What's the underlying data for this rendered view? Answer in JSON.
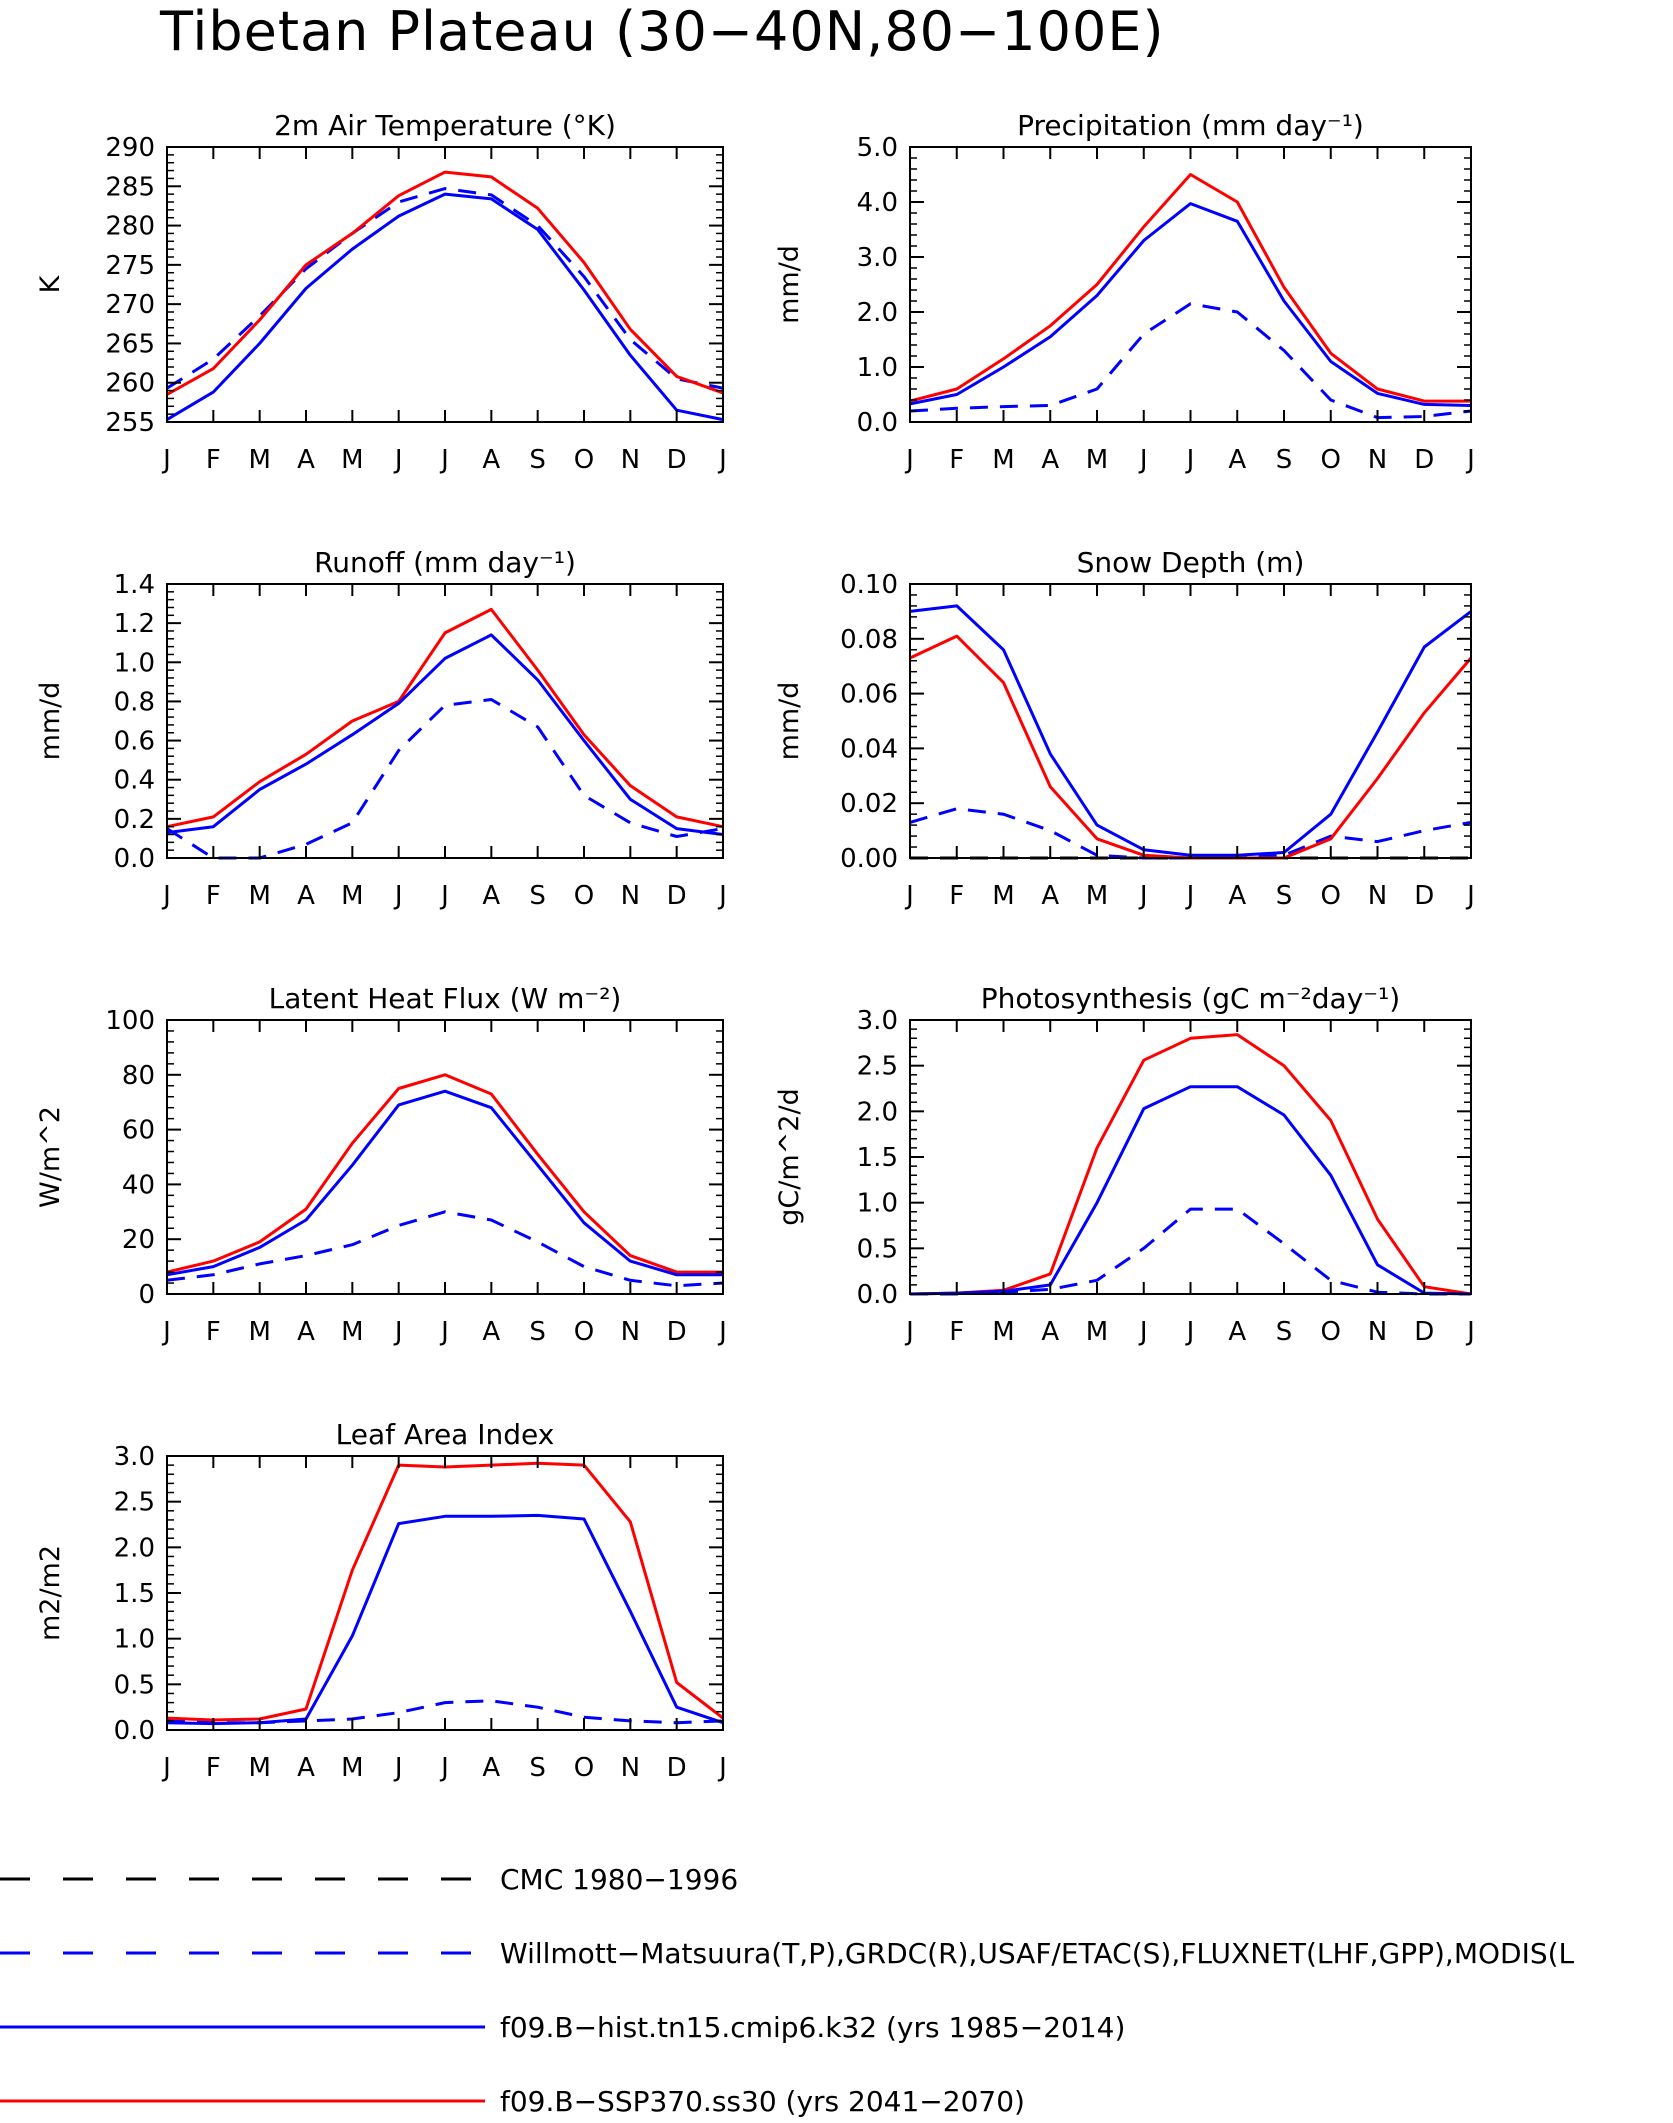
{
  "title": "Tibetan Plateau (30−40N,80−100E)",
  "colors": {
    "red": "#ff0000",
    "blue": "#0000ff",
    "black": "#000000"
  },
  "months": [
    "J",
    "F",
    "M",
    "A",
    "M",
    "J",
    "J",
    "A",
    "S",
    "O",
    "N",
    "D",
    "J"
  ],
  "legend": [
    {
      "label": "CMC 1980−1996",
      "color": "#000000",
      "dash": true
    },
    {
      "label": "Willmott−Matsuura(T,P),GRDC(R),USAF/ETAC(S),FLUXNET(LHF,GPP),MODIS(L",
      "color": "#0000ff",
      "dash": true
    },
    {
      "label": "f09.B−hist.tn15.cmip6.k32 (yrs 1985−2014)",
      "color": "#0000ff",
      "dash": false
    },
    {
      "label": "f09.B−SSP370.ss30 (yrs 2041−2070)",
      "color": "#ff0000",
      "dash": false
    }
  ],
  "chart_data": [
    {
      "type": "line",
      "title": "2m Air Temperature (°K)",
      "ylabel": "K",
      "ylim": [
        255,
        290
      ],
      "yticks": [
        "255",
        "260",
        "265",
        "270",
        "275",
        "280",
        "285",
        "290"
      ],
      "categories": [
        "J",
        "F",
        "M",
        "A",
        "M",
        "J",
        "J",
        "A",
        "S",
        "O",
        "N",
        "D",
        "J"
      ],
      "series": [
        {
          "color": "#0000ff",
          "dash": true,
          "values": [
            259.3,
            263.0,
            268.5,
            274.5,
            279.0,
            283.0,
            284.7,
            283.9,
            280.0,
            273.5,
            265.5,
            260.5,
            259.3
          ]
        },
        {
          "color": "#ff0000",
          "dash": false,
          "values": [
            258.5,
            261.8,
            268.0,
            275.0,
            279.0,
            283.8,
            286.8,
            286.2,
            282.2,
            275.3,
            266.8,
            260.8,
            258.7
          ]
        },
        {
          "color": "#0000ff",
          "dash": false,
          "values": [
            255.3,
            258.8,
            265.0,
            272.0,
            277.0,
            281.2,
            284.0,
            283.4,
            279.5,
            271.8,
            263.5,
            256.5,
            255.3
          ]
        }
      ]
    },
    {
      "type": "line",
      "title": "Precipitation (mm day⁻¹)",
      "ylabel": "mm/d",
      "ylim": [
        0,
        5
      ],
      "yticks": [
        "0.0",
        "1.0",
        "2.0",
        "3.0",
        "4.0",
        "5.0"
      ],
      "categories": [
        "J",
        "F",
        "M",
        "A",
        "M",
        "J",
        "J",
        "A",
        "S",
        "O",
        "N",
        "D",
        "J"
      ],
      "series": [
        {
          "color": "#0000ff",
          "dash": true,
          "values": [
            0.2,
            0.25,
            0.28,
            0.3,
            0.6,
            1.6,
            2.15,
            2.0,
            1.3,
            0.4,
            0.08,
            0.1,
            0.2
          ]
        },
        {
          "color": "#ff0000",
          "dash": false,
          "values": [
            0.38,
            0.6,
            1.15,
            1.75,
            2.5,
            3.55,
            4.5,
            4.0,
            2.45,
            1.25,
            0.6,
            0.38,
            0.38
          ]
        },
        {
          "color": "#0000ff",
          "dash": false,
          "values": [
            0.33,
            0.5,
            1.0,
            1.55,
            2.3,
            3.3,
            3.97,
            3.65,
            2.2,
            1.1,
            0.52,
            0.32,
            0.3
          ]
        }
      ]
    },
    {
      "type": "line",
      "title": "Runoff (mm day⁻¹)",
      "ylabel": "mm/d",
      "ylim": [
        0,
        1.4
      ],
      "yticks": [
        "0.0",
        "0.2",
        "0.4",
        "0.6",
        "0.8",
        "1.0",
        "1.2",
        "1.4"
      ],
      "categories": [
        "J",
        "F",
        "M",
        "A",
        "M",
        "J",
        "J",
        "A",
        "S",
        "O",
        "N",
        "D",
        "J"
      ],
      "series": [
        {
          "color": "#0000ff",
          "dash": true,
          "values": [
            0.15,
            0.0,
            0.0,
            0.07,
            0.18,
            0.55,
            0.78,
            0.81,
            0.67,
            0.32,
            0.18,
            0.11,
            0.15
          ]
        },
        {
          "color": "#ff0000",
          "dash": false,
          "values": [
            0.16,
            0.21,
            0.39,
            0.53,
            0.7,
            0.8,
            1.15,
            1.27,
            0.96,
            0.63,
            0.37,
            0.21,
            0.16
          ]
        },
        {
          "color": "#0000ff",
          "dash": false,
          "values": [
            0.13,
            0.16,
            0.35,
            0.48,
            0.63,
            0.79,
            1.02,
            1.14,
            0.91,
            0.6,
            0.3,
            0.15,
            0.12
          ]
        }
      ]
    },
    {
      "type": "line",
      "title": "Snow Depth (m)",
      "ylabel": "mm/d",
      "ylim": [
        0,
        0.1
      ],
      "yticks": [
        "0.00",
        "0.02",
        "0.04",
        "0.06",
        "0.08",
        "0.10"
      ],
      "categories": [
        "J",
        "F",
        "M",
        "A",
        "M",
        "J",
        "J",
        "A",
        "S",
        "O",
        "N",
        "D",
        "J"
      ],
      "series": [
        {
          "color": "#000000",
          "dash": true,
          "values": [
            0,
            0,
            0,
            0,
            0,
            0,
            0,
            0,
            0,
            0,
            0,
            0,
            0
          ]
        },
        {
          "color": "#0000ff",
          "dash": true,
          "values": [
            0.013,
            0.018,
            0.016,
            0.01,
            0.001,
            0.0,
            0.0,
            0.0,
            0.001,
            0.008,
            0.006,
            0.01,
            0.013
          ]
        },
        {
          "color": "#ff0000",
          "dash": false,
          "values": [
            0.073,
            0.081,
            0.064,
            0.026,
            0.007,
            0.001,
            0.0,
            0.0,
            0.0,
            0.007,
            0.029,
            0.053,
            0.073
          ]
        },
        {
          "color": "#0000ff",
          "dash": false,
          "values": [
            0.09,
            0.092,
            0.076,
            0.038,
            0.012,
            0.003,
            0.001,
            0.001,
            0.002,
            0.016,
            0.046,
            0.077,
            0.09
          ]
        }
      ]
    },
    {
      "type": "line",
      "title": "Latent Heat Flux (W m⁻²)",
      "ylabel": "W/m^2",
      "ylim": [
        0,
        100
      ],
      "yticks": [
        "0",
        "20",
        "40",
        "60",
        "80",
        "100"
      ],
      "categories": [
        "J",
        "F",
        "M",
        "A",
        "M",
        "J",
        "J",
        "A",
        "S",
        "O",
        "N",
        "D",
        "J"
      ],
      "series": [
        {
          "color": "#0000ff",
          "dash": true,
          "values": [
            5,
            7,
            11,
            14,
            18,
            25,
            30,
            27,
            19,
            10,
            5,
            3,
            4
          ]
        },
        {
          "color": "#ff0000",
          "dash": false,
          "values": [
            8,
            12,
            19,
            31,
            55,
            75,
            80,
            73,
            51,
            30,
            14,
            8,
            8
          ]
        },
        {
          "color": "#0000ff",
          "dash": false,
          "values": [
            7,
            10,
            17,
            27,
            47,
            69,
            74,
            68,
            47,
            26,
            12,
            7,
            7
          ]
        }
      ]
    },
    {
      "type": "line",
      "title": "Photosynthesis (gC m⁻²day⁻¹)",
      "ylabel": "gC/m^2/d",
      "ylim": [
        0,
        3
      ],
      "yticks": [
        "0.0",
        "0.5",
        "1.0",
        "1.5",
        "2.0",
        "2.5",
        "3.0"
      ],
      "categories": [
        "J",
        "F",
        "M",
        "A",
        "M",
        "J",
        "J",
        "A",
        "S",
        "O",
        "N",
        "D",
        "J"
      ],
      "series": [
        {
          "color": "#0000ff",
          "dash": true,
          "values": [
            0.0,
            0.0,
            0.02,
            0.05,
            0.15,
            0.5,
            0.93,
            0.93,
            0.55,
            0.15,
            0.02,
            0.0,
            0.0
          ]
        },
        {
          "color": "#ff0000",
          "dash": false,
          "values": [
            0.0,
            0.01,
            0.04,
            0.22,
            1.6,
            2.56,
            2.8,
            2.84,
            2.5,
            1.9,
            0.82,
            0.08,
            0.0
          ]
        },
        {
          "color": "#0000ff",
          "dash": false,
          "values": [
            0.0,
            0.01,
            0.03,
            0.1,
            1.0,
            2.03,
            2.27,
            2.27,
            1.96,
            1.3,
            0.32,
            0.01,
            0.0
          ]
        }
      ]
    },
    {
      "type": "line",
      "title": "Leaf Area Index",
      "ylabel": "m2/m2",
      "ylim": [
        0,
        3
      ],
      "yticks": [
        "0.0",
        "0.5",
        "1.0",
        "1.5",
        "2.0",
        "2.5",
        "3.0"
      ],
      "categories": [
        "J",
        "F",
        "M",
        "A",
        "M",
        "J",
        "J",
        "A",
        "S",
        "O",
        "N",
        "D",
        "J"
      ],
      "series": [
        {
          "color": "#0000ff",
          "dash": true,
          "values": [
            0.1,
            0.08,
            0.08,
            0.1,
            0.12,
            0.19,
            0.3,
            0.32,
            0.25,
            0.14,
            0.1,
            0.08,
            0.1
          ]
        },
        {
          "color": "#ff0000",
          "dash": false,
          "values": [
            0.13,
            0.11,
            0.12,
            0.23,
            1.75,
            2.9,
            2.88,
            2.9,
            2.92,
            2.9,
            2.28,
            0.52,
            0.13
          ]
        },
        {
          "color": "#0000ff",
          "dash": false,
          "values": [
            0.08,
            0.07,
            0.08,
            0.12,
            1.03,
            2.26,
            2.34,
            2.34,
            2.35,
            2.31,
            1.3,
            0.25,
            0.08
          ]
        }
      ]
    }
  ]
}
